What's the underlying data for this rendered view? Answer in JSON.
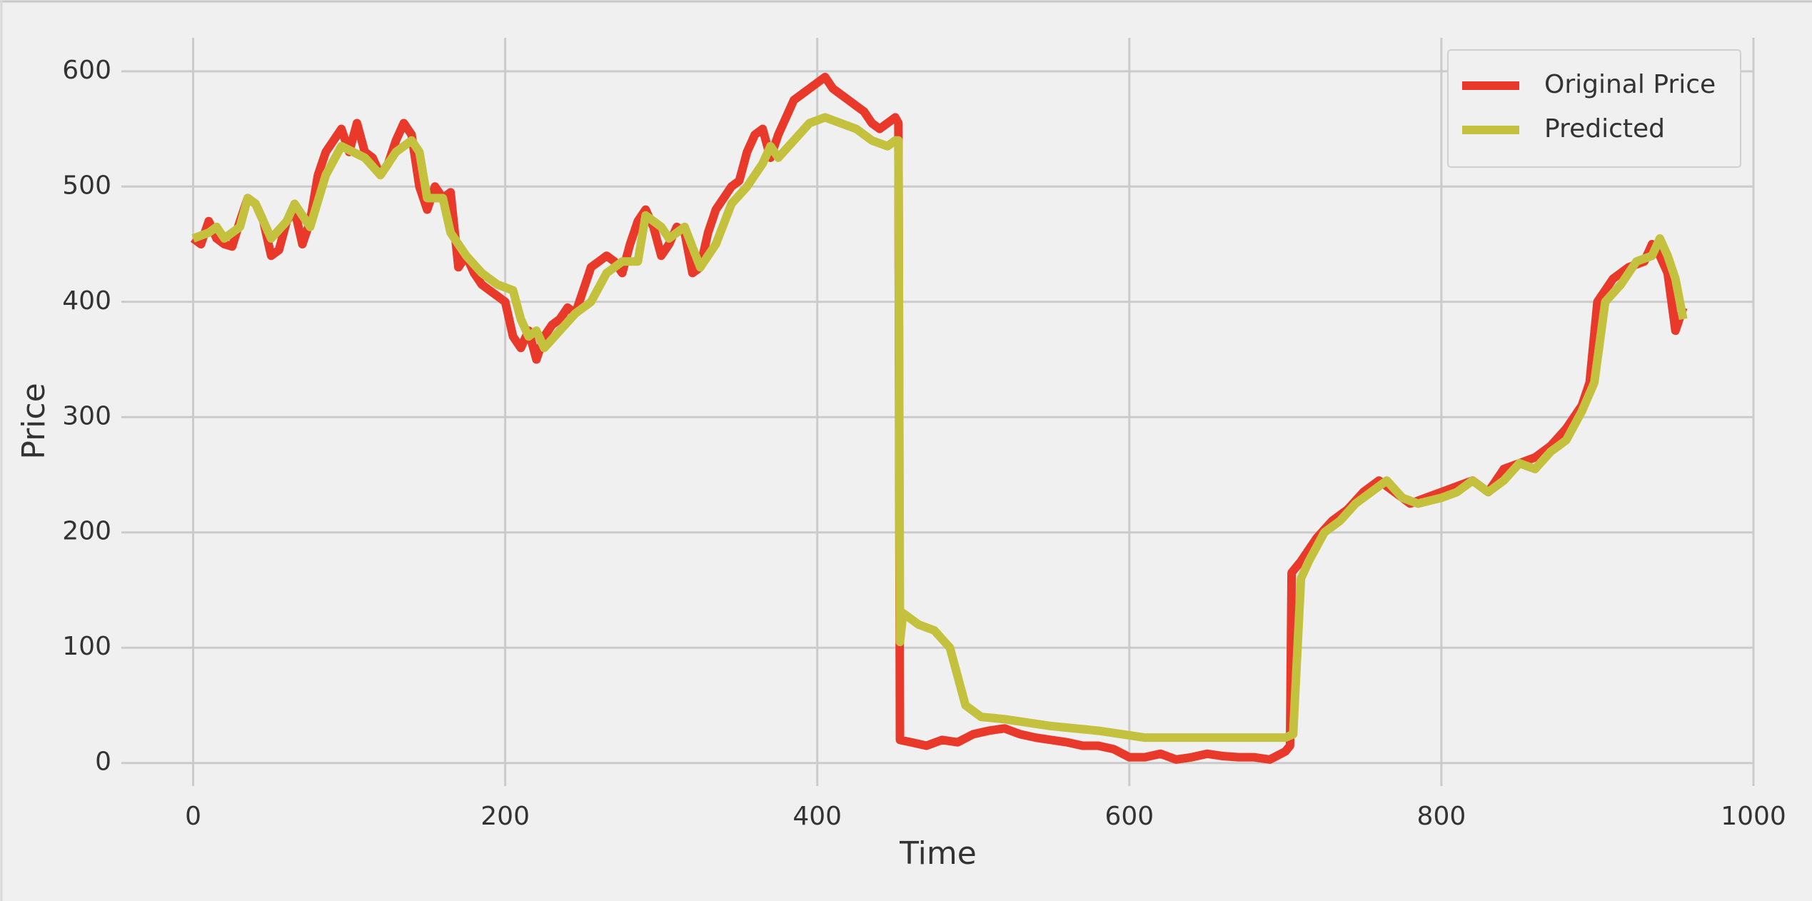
{
  "chart_data": {
    "type": "line",
    "xlabel": "Time",
    "ylabel": "Price",
    "xlim": [
      -46,
      1000
    ],
    "xticks": [
      0,
      200,
      400,
      600,
      800,
      1000
    ],
    "ylim": [
      -20,
      629
    ],
    "yticks": [
      0,
      100,
      200,
      300,
      400,
      500,
      600
    ],
    "grid": true,
    "legend": "upper right",
    "series": [
      {
        "name": "Original Price",
        "color": "#e8392a",
        "x": [
          0,
          5,
          10,
          15,
          20,
          25,
          30,
          35,
          40,
          45,
          50,
          55,
          60,
          65,
          70,
          75,
          80,
          85,
          90,
          95,
          100,
          105,
          110,
          115,
          120,
          125,
          130,
          135,
          140,
          145,
          150,
          155,
          160,
          165,
          170,
          175,
          180,
          185,
          190,
          195,
          200,
          205,
          210,
          215,
          220,
          225,
          230,
          235,
          240,
          245,
          250,
          255,
          260,
          265,
          270,
          275,
          280,
          285,
          290,
          295,
          300,
          305,
          310,
          315,
          320,
          325,
          330,
          335,
          340,
          345,
          350,
          355,
          360,
          365,
          370,
          375,
          380,
          385,
          390,
          395,
          400,
          405,
          410,
          415,
          420,
          425,
          430,
          435,
          440,
          445,
          450,
          452,
          453,
          460,
          470,
          480,
          490,
          500,
          510,
          520,
          530,
          540,
          550,
          560,
          570,
          580,
          590,
          600,
          610,
          620,
          630,
          640,
          650,
          660,
          670,
          680,
          690,
          700,
          703,
          704,
          710,
          720,
          730,
          740,
          750,
          760,
          770,
          780,
          790,
          800,
          810,
          820,
          830,
          840,
          850,
          860,
          870,
          880,
          890,
          895,
          900,
          905,
          910,
          920,
          930,
          935,
          940,
          945,
          950,
          955
        ],
        "values": [
          455,
          450,
          470,
          455,
          450,
          448,
          470,
          490,
          485,
          470,
          440,
          445,
          470,
          480,
          450,
          470,
          510,
          530,
          540,
          550,
          530,
          555,
          530,
          525,
          510,
          520,
          540,
          555,
          545,
          500,
          480,
          500,
          490,
          495,
          430,
          440,
          425,
          415,
          410,
          405,
          400,
          370,
          360,
          375,
          350,
          370,
          380,
          385,
          395,
          390,
          410,
          430,
          435,
          440,
          435,
          425,
          450,
          470,
          480,
          465,
          440,
          450,
          465,
          460,
          425,
          430,
          460,
          480,
          490,
          500,
          505,
          530,
          545,
          550,
          525,
          545,
          560,
          575,
          580,
          585,
          590,
          595,
          585,
          580,
          575,
          570,
          565,
          555,
          550,
          555,
          560,
          555,
          20,
          18,
          15,
          20,
          18,
          25,
          28,
          30,
          25,
          22,
          20,
          18,
          15,
          15,
          12,
          5,
          5,
          8,
          3,
          5,
          8,
          6,
          5,
          5,
          3,
          10,
          15,
          165,
          175,
          195,
          210,
          220,
          235,
          245,
          235,
          225,
          230,
          235,
          240,
          245,
          235,
          255,
          260,
          265,
          275,
          290,
          310,
          330,
          400,
          410,
          420,
          430,
          435,
          450,
          440,
          425,
          375,
          395
        ]
      },
      {
        "name": "Predicted",
        "color": "#c3c13e",
        "x": [
          0,
          10,
          15,
          20,
          30,
          35,
          40,
          50,
          60,
          65,
          75,
          85,
          95,
          110,
          120,
          130,
          140,
          145,
          150,
          160,
          165,
          175,
          185,
          195,
          205,
          210,
          215,
          220,
          225,
          235,
          245,
          255,
          265,
          275,
          285,
          290,
          300,
          305,
          315,
          325,
          335,
          345,
          355,
          365,
          370,
          375,
          385,
          395,
          405,
          415,
          425,
          435,
          445,
          450,
          452,
          453,
          455,
          465,
          475,
          485,
          495,
          505,
          520,
          535,
          550,
          565,
          580,
          595,
          610,
          625,
          640,
          660,
          680,
          700,
          705,
          710,
          715,
          725,
          735,
          745,
          755,
          765,
          775,
          785,
          800,
          810,
          820,
          830,
          840,
          850,
          860,
          870,
          880,
          890,
          898,
          905,
          915,
          925,
          935,
          940,
          945,
          950,
          955
        ],
        "values": [
          455,
          460,
          465,
          455,
          465,
          490,
          485,
          455,
          470,
          485,
          465,
          510,
          535,
          525,
          510,
          530,
          540,
          530,
          490,
          490,
          460,
          440,
          425,
          415,
          410,
          385,
          370,
          375,
          360,
          375,
          390,
          400,
          425,
          435,
          435,
          475,
          465,
          455,
          465,
          430,
          450,
          485,
          500,
          520,
          535,
          525,
          540,
          555,
          560,
          555,
          550,
          540,
          535,
          540,
          540,
          105,
          130,
          120,
          115,
          100,
          50,
          40,
          38,
          35,
          32,
          30,
          28,
          25,
          22,
          22,
          22,
          22,
          22,
          22,
          25,
          160,
          175,
          200,
          210,
          225,
          235,
          245,
          230,
          225,
          230,
          235,
          245,
          235,
          245,
          260,
          255,
          270,
          280,
          305,
          330,
          400,
          415,
          435,
          440,
          455,
          440,
          420,
          385
        ]
      }
    ]
  }
}
